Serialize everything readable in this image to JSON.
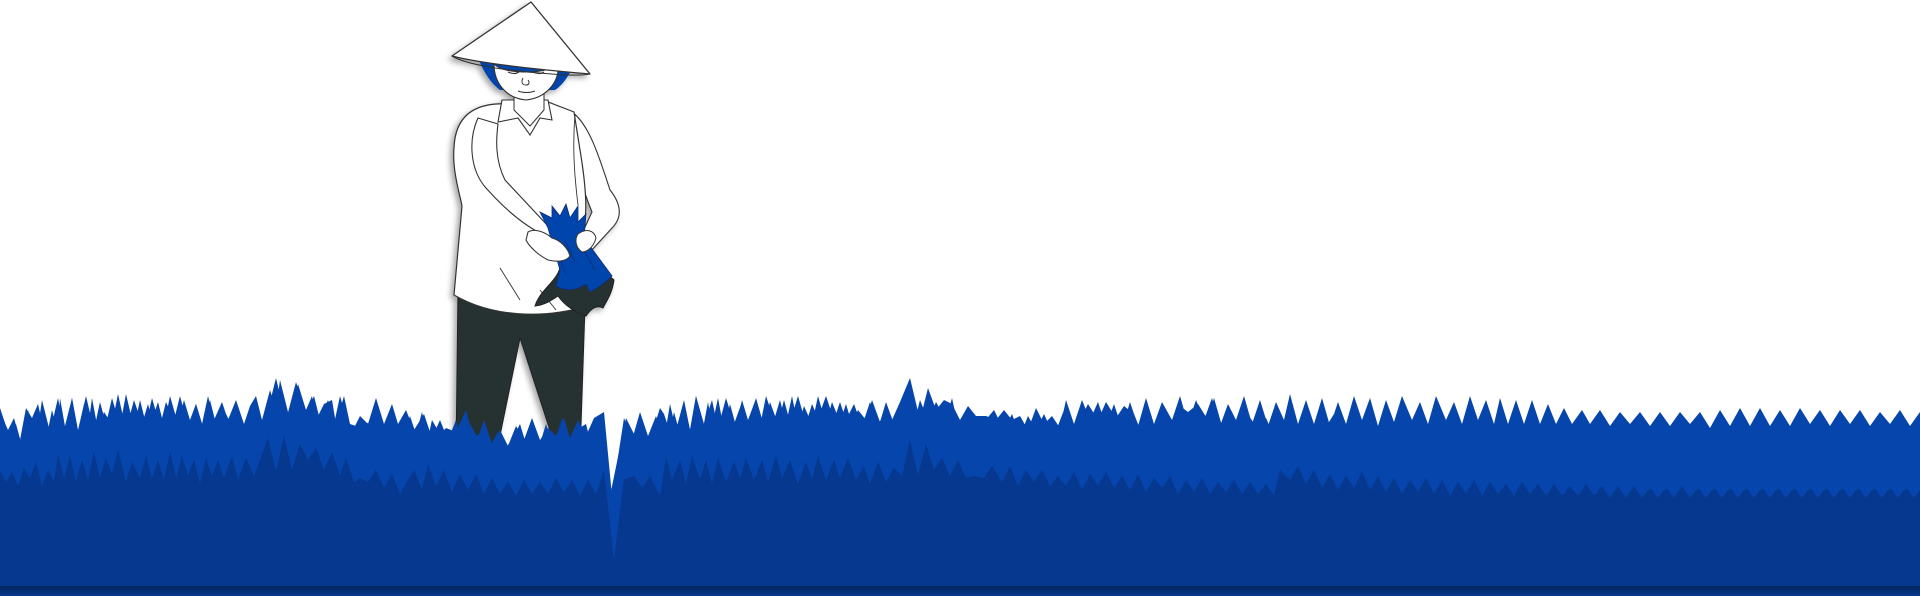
{
  "scene": {
    "subject": "rice-farmer-in-field",
    "icons": [
      "conical-hat-icon",
      "rice-seedling-bundle-icon"
    ],
    "colors": {
      "background": "#ffffff",
      "grass_front": "#0645ab",
      "grass_back": "#05388e",
      "pants": "#283033",
      "outline": "#333333",
      "shirt": "#ffffff",
      "hair": "#0645ab"
    }
  }
}
